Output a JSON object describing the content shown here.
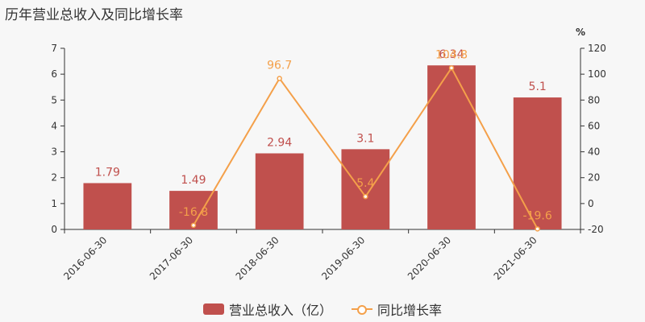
{
  "title": "历年营业总收入及同比增长率",
  "colors": {
    "bar": "#c0504d",
    "line": "#f4a04a",
    "bar_label": "#c0504d",
    "line_label": "#f4a04a",
    "axis": "#333333"
  },
  "legend": {
    "bar_label": "营业总收入（亿）",
    "line_label": "同比增长率"
  },
  "chart_data": {
    "type": "bar",
    "categories": [
      "2016-06-30",
      "2017-06-30",
      "2018-06-30",
      "2019-06-30",
      "2020-06-30",
      "2021-06-30"
    ],
    "series": [
      {
        "name": "营业总收入（亿）",
        "type": "bar",
        "axis": "left",
        "values": [
          1.79,
          1.49,
          2.94,
          3.1,
          6.34,
          5.1
        ]
      },
      {
        "name": "同比增长率",
        "type": "line",
        "axis": "right",
        "values": [
          null,
          -16.8,
          96.7,
          5.4,
          104.8,
          -19.6
        ],
        "labels": [
          "",
          "-16.8",
          "96.7",
          "5.4",
          "104.8",
          "-19.6"
        ]
      }
    ],
    "bar_labels": [
      "1.79",
      "1.49",
      "2.94",
      "3.1",
      "6.34",
      "5.1"
    ],
    "y_left": {
      "min": 0,
      "max": 7,
      "ticks": [
        0,
        1,
        2,
        3,
        4,
        5,
        6,
        7
      ]
    },
    "y_right": {
      "min": -20,
      "max": 120,
      "ticks": [
        -20,
        0,
        20,
        40,
        60,
        80,
        100,
        120
      ],
      "unit": "%"
    },
    "legend_position": "bottom"
  }
}
